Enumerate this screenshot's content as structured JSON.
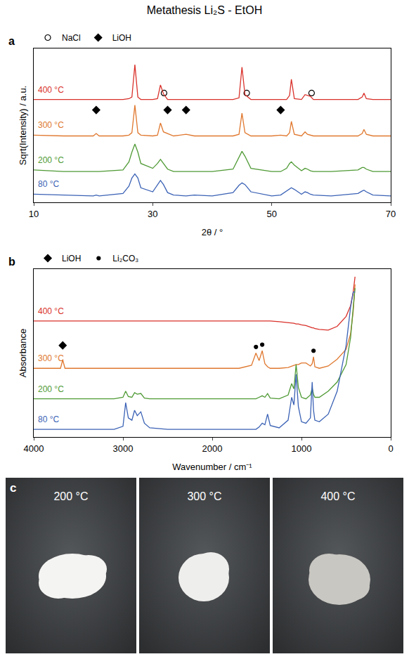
{
  "title": "Metathesis Li₂S - EtOH",
  "chart_data": [
    {
      "type": "line",
      "letter": "a",
      "xlabel": "2θ / °",
      "ylabel": "Sqrt(Intensity) / a.u.",
      "xlim": [
        10,
        70
      ],
      "xticks": [
        10,
        30,
        50,
        70
      ],
      "ylim": [
        0,
        190
      ],
      "grid": false,
      "tick_labels": "x",
      "legend": "top left",
      "x": [
        10,
        15,
        20,
        20.5,
        21,
        25,
        26,
        26.5,
        27,
        27.5,
        28,
        30,
        30.8,
        31.3,
        31.8,
        32.5,
        33.5,
        35.6,
        37,
        40,
        43.5,
        44.5,
        45,
        45.5,
        46.5,
        50,
        51.5,
        52.5,
        53,
        53.3,
        53.8,
        55,
        55.6,
        56,
        56.5,
        57,
        60,
        64.5,
        65.2,
        65.5,
        65.9,
        67,
        70
      ],
      "series": [
        {
          "name": "NaCl",
          "type": "scatter",
          "marker": "circle-open",
          "color": "#000000",
          "x": [
            31.9,
            45.8,
            56.7
          ],
          "values": [
            135,
            135,
            135
          ]
        },
        {
          "name": "LiOH",
          "type": "scatter",
          "marker": "diamond",
          "color": "#000000",
          "x": [
            20.5,
            32.5,
            35.6,
            51.5
          ],
          "values": [
            114,
            114,
            114,
            114
          ]
        },
        {
          "name": "400 °C",
          "type": "line",
          "color": "#d9312b",
          "values": [
            127,
            127,
            127,
            127,
            127,
            127,
            128,
            130,
            170,
            130,
            127,
            127,
            128,
            145,
            134,
            127,
            127,
            127,
            127,
            127,
            127,
            129,
            167,
            133,
            127,
            127,
            127,
            127,
            132,
            152,
            128,
            127,
            133,
            132,
            131,
            127,
            127,
            127,
            130,
            135,
            128,
            127,
            127
          ]
        },
        {
          "name": "300 °C",
          "type": "line",
          "color": "#e0782f",
          "values": [
            83,
            82,
            82,
            85,
            82,
            82,
            83,
            86,
            120,
            86,
            83,
            82,
            83,
            98,
            87,
            85,
            82,
            84,
            82,
            82,
            82,
            84,
            110,
            86,
            82,
            82,
            83,
            82,
            86,
            100,
            84,
            82,
            87,
            84,
            83,
            82,
            82,
            82,
            85,
            90,
            84,
            82,
            82
          ]
        },
        {
          "name": "200 °C",
          "type": "line",
          "color": "#4f9a35",
          "values": [
            40,
            38,
            38,
            38,
            38,
            40,
            50,
            62,
            72,
            62,
            48,
            42,
            48,
            53,
            48,
            41,
            38,
            38,
            38,
            38,
            41,
            55,
            63,
            57,
            42,
            38,
            38,
            42,
            48,
            50,
            46,
            39,
            42,
            41,
            39,
            38,
            38,
            40,
            43,
            43,
            41,
            38,
            38
          ]
        },
        {
          "name": "80 °C",
          "type": "line",
          "color": "#3b62b5",
          "values": [
            10,
            9,
            8,
            9,
            8,
            11,
            20,
            30,
            35,
            30,
            18,
            13,
            22,
            27,
            22,
            12,
            9,
            8,
            9,
            8,
            12,
            21,
            24,
            22,
            13,
            8,
            9,
            14,
            17,
            18,
            16,
            10,
            13,
            12,
            10,
            9,
            8,
            11,
            14,
            15,
            13,
            9,
            8
          ]
        }
      ]
    },
    {
      "type": "line",
      "letter": "b",
      "xlabel": "Wavenumber / cm⁻¹",
      "ylabel": "Absorbance",
      "xlim": [
        4000,
        0
      ],
      "xticks": [
        4000,
        3000,
        2000,
        1000,
        0
      ],
      "ylim": [
        0,
        220
      ],
      "grid": false,
      "tick_labels": "x",
      "legend": "top left",
      "x": [
        4000,
        3800,
        3700,
        3675,
        3650,
        3500,
        3100,
        3000,
        2970,
        2940,
        2900,
        2870,
        2840,
        2800,
        2760,
        2700,
        2500,
        2000,
        1700,
        1560,
        1510,
        1475,
        1440,
        1410,
        1380,
        1350,
        1250,
        1150,
        1110,
        1085,
        1060,
        1035,
        1000,
        950,
        900,
        880,
        865,
        850,
        800,
        700,
        600,
        500,
        450,
        420,
        400
      ],
      "series": [
        {
          "name": "LiOH",
          "type": "scatter",
          "marker": "diamond",
          "color": "#000000",
          "x": [
            3675
          ],
          "values": [
            120
          ]
        },
        {
          "name": "Li₂CO₃",
          "type": "scatter",
          "marker": "circle",
          "color": "#000000",
          "x": [
            1510,
            1440,
            865
          ],
          "values": [
            118,
            121,
            113
          ]
        },
        {
          "name": "400 °C",
          "type": "line",
          "color": "#d9312b",
          "values": [
            152,
            152,
            152,
            152,
            152,
            152,
            152,
            152,
            152,
            152,
            152,
            152,
            152,
            152,
            152,
            152,
            152,
            152,
            152,
            152,
            152,
            152,
            152,
            152,
            152,
            152,
            151,
            150,
            149,
            149,
            148,
            148,
            147,
            146,
            144,
            143,
            143,
            142,
            141,
            140,
            145,
            158,
            172,
            190,
            210
          ]
        },
        {
          "name": "300 °C",
          "type": "line",
          "color": "#e0782f",
          "values": [
            90,
            90,
            90,
            101,
            90,
            90,
            90,
            90,
            90,
            90,
            90,
            90,
            90,
            90,
            90,
            90,
            90,
            90,
            90,
            94,
            110,
            100,
            113,
            96,
            92,
            90,
            90,
            91,
            93,
            94,
            95,
            95,
            97,
            97,
            93,
            96,
            105,
            92,
            90,
            93,
            102,
            115,
            135,
            165,
            200
          ]
        },
        {
          "name": "200 °C",
          "type": "line",
          "color": "#4f9a35",
          "values": [
            50,
            50,
            50,
            50,
            50,
            50,
            50,
            52,
            60,
            53,
            52,
            58,
            56,
            57,
            51,
            50,
            50,
            50,
            50,
            50,
            50,
            52,
            54,
            52,
            57,
            51,
            50,
            55,
            70,
            63,
            95,
            65,
            52,
            50,
            55,
            64,
            56,
            52,
            52,
            60,
            72,
            95,
            130,
            170,
            195
          ]
        },
        {
          "name": "80 °C",
          "type": "line",
          "color": "#3b62b5",
          "values": [
            10,
            10,
            10,
            10,
            10,
            10,
            10,
            14,
            45,
            25,
            22,
            35,
            28,
            33,
            18,
            12,
            10,
            10,
            10,
            10,
            10,
            13,
            18,
            16,
            30,
            15,
            12,
            22,
            52,
            42,
            82,
            40,
            20,
            18,
            25,
            72,
            35,
            22,
            20,
            30,
            60,
            120,
            170,
            190,
            190
          ]
        }
      ]
    }
  ],
  "photos": {
    "letter": "c",
    "labels": [
      "200 °C",
      "300 °C",
      "400 °C"
    ]
  }
}
